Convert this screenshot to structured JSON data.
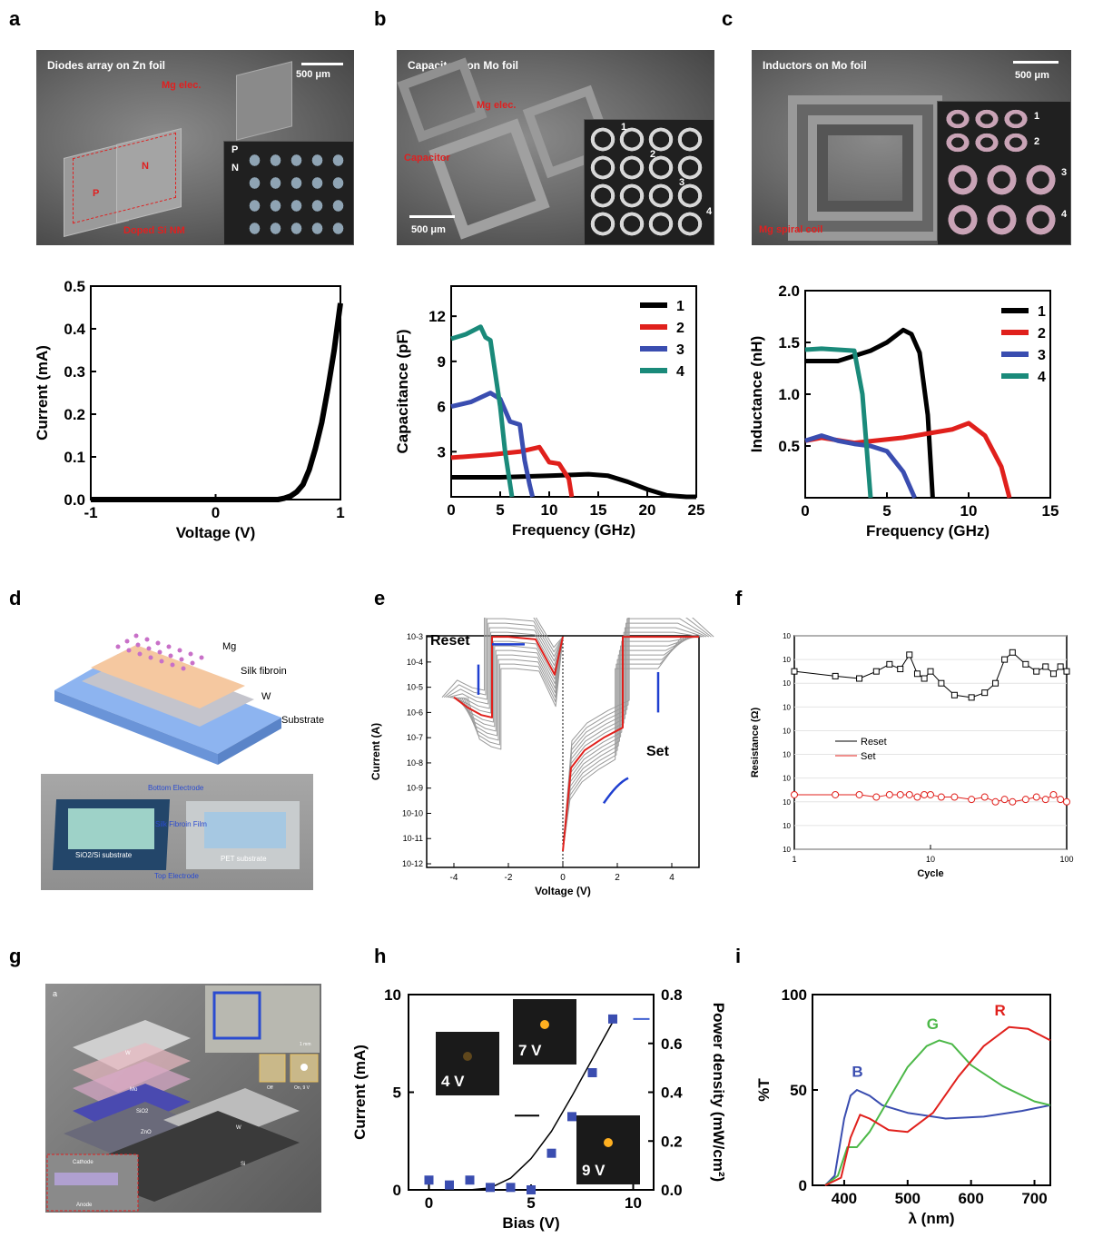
{
  "panels": {
    "a": "a",
    "b": "b",
    "c": "c",
    "d": "d",
    "e": "e",
    "f": "f",
    "g": "g",
    "h": "h",
    "i": "i"
  },
  "sem_a": {
    "title": "Diodes array on Zn foil",
    "scale": "500 μm",
    "mg": "Mg elec.",
    "p": "P",
    "n": "N",
    "doped": "Doped Si NM",
    "inset_p": "P",
    "inset_n": "N"
  },
  "sem_b": {
    "title": "Capacitors on Mo foil",
    "scale": "500 μm",
    "mg": "Mg elec.",
    "cap": "Capacitor",
    "n1": "1",
    "n2": "2",
    "n3": "3",
    "n4": "4"
  },
  "sem_c": {
    "title": "Inductors on Mo foil",
    "scale": "500 μm",
    "coil": "Mg spiral coil",
    "n1": "1",
    "n2": "2",
    "n3": "3",
    "n4": "4"
  },
  "schem_d": {
    "mg": "Mg",
    "silk": "Silk fibroin",
    "w": "W",
    "substrate": "Substrate",
    "bottom": "Bottom Electrode",
    "film": "Silk Fibroin Film",
    "top": "Top Electrode",
    "sio2": "SiO2/Si substrate",
    "pet": "PET substrate"
  },
  "schem_g": {
    "a": "a",
    "w": "W",
    "mo": "Mo",
    "sio2": "SiO2",
    "zno": "ZnO",
    "si": "Si",
    "w2": "W",
    "cathode": "Cathode",
    "anode": "Anode",
    "scale": "1 mm",
    "off": "Off",
    "on": "On, 9 V"
  },
  "chart_data": [
    {
      "id": "a",
      "type": "line",
      "xlabel": "Voltage (V)",
      "ylabel": "Current (mA)",
      "xlim": [
        -1,
        1
      ],
      "ylim": [
        0,
        0.5
      ],
      "xticks": [
        "-1",
        "0",
        "1"
      ],
      "yticks": [
        "0.0",
        "0.1",
        "0.2",
        "0.3",
        "0.4",
        "0.5"
      ],
      "series": [
        {
          "x": [
            -1,
            0.5,
            0.55,
            0.6,
            0.65,
            0.7,
            0.75,
            0.8,
            0.85,
            0.9,
            0.95,
            1.0
          ],
          "y": [
            0,
            0,
            0.003,
            0.008,
            0.018,
            0.035,
            0.07,
            0.12,
            0.18,
            0.26,
            0.35,
            0.46
          ]
        }
      ]
    },
    {
      "id": "b",
      "type": "line",
      "xlabel": "Frequency (GHz)",
      "ylabel": "Capacitance (pF)",
      "xlim": [
        0,
        25
      ],
      "ylim": [
        0,
        14
      ],
      "xticks": [
        "0",
        "5",
        "10",
        "15",
        "20",
        "25"
      ],
      "yticks": [
        "3",
        "6",
        "9",
        "12"
      ],
      "series": [
        {
          "name": "1",
          "color": "#000000",
          "x": [
            0,
            5,
            10,
            14,
            16,
            18,
            20,
            22,
            24,
            25
          ],
          "y": [
            1.3,
            1.3,
            1.4,
            1.5,
            1.4,
            1.0,
            0.5,
            0.1,
            0,
            0
          ]
        },
        {
          "name": "2",
          "color": "#e0201c",
          "x": [
            0,
            4,
            7,
            9,
            10,
            11,
            12,
            12.3
          ],
          "y": [
            2.6,
            2.8,
            3.0,
            3.3,
            2.3,
            2.2,
            1.2,
            0
          ]
        },
        {
          "name": "3",
          "color": "#3a4db0",
          "x": [
            0,
            2,
            4,
            5,
            6,
            7,
            7.5,
            8,
            8.3
          ],
          "y": [
            6.0,
            6.3,
            6.9,
            6.5,
            5.0,
            4.8,
            2.4,
            0.8,
            0
          ]
        },
        {
          "name": "4",
          "color": "#1a8a7a",
          "x": [
            0,
            1.5,
            3,
            3.5,
            4,
            5,
            5.5,
            6.2
          ],
          "y": [
            10.5,
            10.8,
            11.3,
            10.6,
            10.4,
            6.0,
            3.0,
            0
          ]
        }
      ]
    },
    {
      "id": "c",
      "type": "line",
      "xlabel": "Frequency (GHz)",
      "ylabel": "Inductance (nH)",
      "xlim": [
        0,
        15
      ],
      "ylim": [
        0,
        2.0
      ],
      "xticks": [
        "0",
        "5",
        "10",
        "15"
      ],
      "yticks": [
        "0.5",
        "1.0",
        "1.5",
        "2.0"
      ],
      "series": [
        {
          "name": "1",
          "color": "#000000",
          "x": [
            0,
            2,
            4,
            5,
            6,
            6.5,
            7,
            7.5,
            7.8
          ],
          "y": [
            1.32,
            1.32,
            1.42,
            1.5,
            1.62,
            1.58,
            1.4,
            0.8,
            0
          ]
        },
        {
          "name": "2",
          "color": "#e0201c",
          "x": [
            0,
            1,
            3,
            6,
            9,
            10,
            11,
            12,
            12.5
          ],
          "y": [
            0.55,
            0.58,
            0.53,
            0.58,
            0.66,
            0.72,
            0.6,
            0.3,
            0
          ]
        },
        {
          "name": "3",
          "color": "#3a4db0",
          "x": [
            0,
            1,
            2,
            3,
            4,
            5,
            6,
            6.7
          ],
          "y": [
            0.55,
            0.6,
            0.55,
            0.52,
            0.5,
            0.45,
            0.25,
            0
          ]
        },
        {
          "name": "4",
          "color": "#1a8a7a",
          "x": [
            0,
            1,
            2,
            3,
            3.5,
            3.8,
            4.0
          ],
          "y": [
            1.43,
            1.44,
            1.43,
            1.42,
            1.0,
            0.4,
            0
          ]
        }
      ]
    },
    {
      "id": "e",
      "type": "line",
      "xlabel": "Voltage (V)",
      "ylabel": "Current (A)",
      "xlim": [
        -5,
        5
      ],
      "ylim_log": [
        -12,
        -3
      ],
      "xticks": [
        "-4",
        "-2",
        "0",
        "2",
        "4"
      ],
      "yticks": [
        "10-12",
        "10-11",
        "10-10",
        "10-9",
        "10-8",
        "10-7",
        "10-6",
        "10-5",
        "10-4",
        "10-3"
      ],
      "annotations": [
        "Reset",
        "Set"
      ],
      "series": [
        {
          "name": "cycle",
          "color": "#e0201c",
          "x": [
            0,
            0.3,
            0.8,
            1.5,
            2.2,
            2.2,
            2.5,
            4,
            5
          ],
          "ylog": [
            -11.5,
            -8.2,
            -7.5,
            -7.0,
            -6.6,
            -3.0,
            -3.0,
            -3.0,
            -3.0
          ]
        },
        {
          "name": "reset",
          "color": "#e0201c",
          "x": [
            0,
            -0.3,
            -1,
            -2,
            -2.6,
            -2.6,
            -3,
            -3.5,
            -4
          ],
          "ylog": [
            -3.0,
            -4.5,
            -3.1,
            -3.0,
            -3.0,
            -6.2,
            -6.1,
            -5.8,
            -5.4
          ]
        }
      ]
    },
    {
      "id": "f",
      "type": "line",
      "xlabel": "Cycle",
      "ylabel": "Resistance (Ω)",
      "xlim_log": [
        0,
        2
      ],
      "ylim_log": [
        1,
        10
      ],
      "xticks": [
        "1",
        "10",
        "100"
      ],
      "yticks": [
        "10",
        "10",
        "10",
        "10",
        "10",
        "10",
        "10",
        "10",
        "10",
        "10"
      ],
      "legend": [
        "Reset",
        "Set"
      ],
      "series": [
        {
          "name": "Reset",
          "color": "#000000",
          "x": [
            1,
            2,
            3,
            4,
            5,
            6,
            7,
            8,
            9,
            10,
            12,
            15,
            20,
            25,
            30,
            35,
            40,
            50,
            60,
            70,
            80,
            90,
            100
          ],
          "ylog": [
            8.5,
            8.3,
            8.2,
            8.5,
            8.8,
            8.6,
            9.2,
            8.4,
            8.2,
            8.5,
            8.0,
            7.5,
            7.4,
            7.6,
            8.0,
            9.0,
            9.3,
            8.8,
            8.5,
            8.7,
            8.4,
            8.7,
            8.5
          ]
        },
        {
          "name": "Set",
          "color": "#e0201c",
          "x": [
            1,
            2,
            3,
            4,
            5,
            6,
            7,
            8,
            9,
            10,
            12,
            15,
            20,
            25,
            30,
            35,
            40,
            50,
            60,
            70,
            80,
            90,
            100
          ],
          "ylog": [
            3.3,
            3.3,
            3.3,
            3.2,
            3.3,
            3.3,
            3.3,
            3.2,
            3.3,
            3.3,
            3.2,
            3.2,
            3.1,
            3.2,
            3.0,
            3.1,
            3.0,
            3.1,
            3.2,
            3.1,
            3.3,
            3.1,
            3.0
          ]
        }
      ]
    },
    {
      "id": "h",
      "type": "scatter",
      "xlabel": "Bias (V)",
      "ylabel": "Current (mA)",
      "y2label": "Power density (mW/cm²)",
      "xlim": [
        -1,
        11
      ],
      "ylim": [
        0,
        10
      ],
      "y2lim": [
        0,
        0.8
      ],
      "xticks": [
        "0",
        "5",
        "10"
      ],
      "yticks": [
        "0",
        "5",
        "10"
      ],
      "y2ticks": [
        "0.0",
        "0.2",
        "0.4",
        "0.6",
        "0.8"
      ],
      "insets": [
        "4 V",
        "7 V",
        "9 V"
      ],
      "series": [
        {
          "name": "current",
          "color": "#000000",
          "x": [
            0,
            2,
            3,
            4,
            5,
            6,
            7,
            8,
            9
          ],
          "y": [
            0,
            0,
            0.1,
            0.6,
            1.6,
            3.0,
            4.8,
            6.7,
            8.6
          ]
        },
        {
          "name": "power",
          "color": "#3a4db0",
          "x": [
            0,
            1,
            2,
            3,
            4,
            5,
            6,
            7,
            8,
            9
          ],
          "y2": [
            0.04,
            0.02,
            0.04,
            0.01,
            0.01,
            0.0,
            0.15,
            0.3,
            0.48,
            0.7
          ]
        }
      ]
    },
    {
      "id": "i",
      "type": "line",
      "xlabel": "λ (nm)",
      "ylabel": "%T",
      "xlim": [
        350,
        725
      ],
      "ylim": [
        0,
        100
      ],
      "xticks": [
        "400",
        "500",
        "600",
        "700"
      ],
      "yticks": [
        "0",
        "50",
        "100"
      ],
      "annotations": [
        "B",
        "G",
        "R"
      ],
      "series": [
        {
          "name": "B",
          "color": "#3a4db0",
          "x": [
            370,
            385,
            400,
            410,
            420,
            440,
            460,
            500,
            560,
            620,
            680,
            725
          ],
          "y": [
            0,
            5,
            35,
            47,
            50,
            47,
            42,
            38,
            35,
            36,
            39,
            42
          ]
        },
        {
          "name": "G",
          "color": "#4cb848",
          "x": [
            370,
            390,
            405,
            420,
            440,
            470,
            500,
            530,
            550,
            570,
            600,
            650,
            700,
            725
          ],
          "y": [
            0,
            5,
            20,
            20,
            28,
            45,
            62,
            73,
            76,
            74,
            63,
            52,
            44,
            42
          ]
        },
        {
          "name": "R",
          "color": "#e0201c",
          "x": [
            370,
            395,
            410,
            425,
            440,
            470,
            500,
            540,
            580,
            620,
            660,
            690,
            725
          ],
          "y": [
            0,
            4,
            25,
            37,
            35,
            29,
            28,
            38,
            57,
            73,
            83,
            82,
            76
          ]
        }
      ]
    }
  ]
}
